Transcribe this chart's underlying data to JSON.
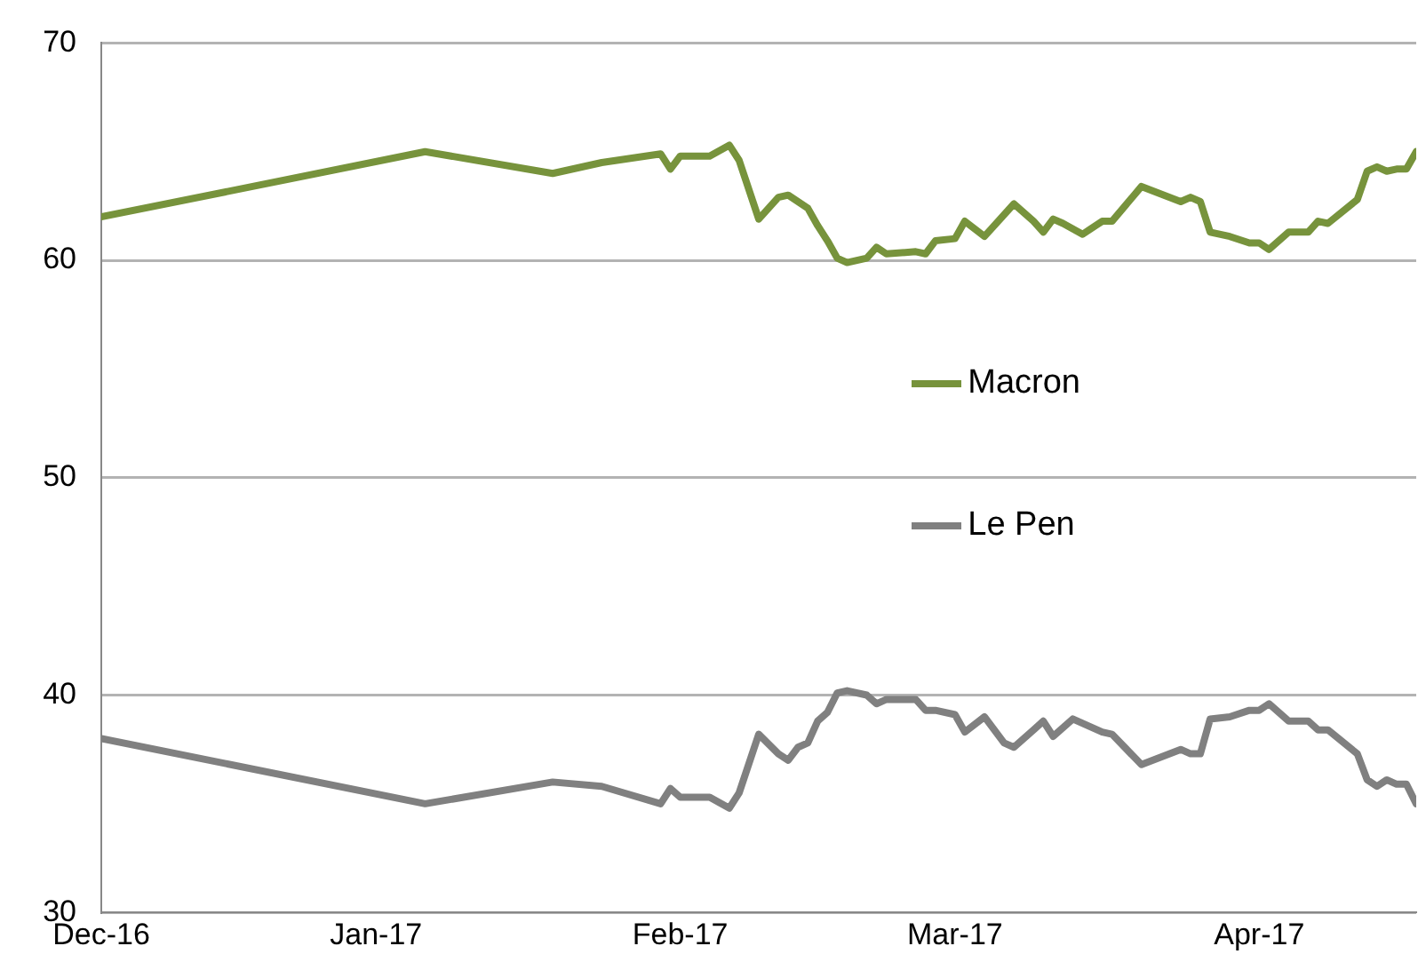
{
  "chart_data": {
    "type": "line",
    "legend": "right",
    "grid": "y",
    "marker": "none",
    "line_style": "solid",
    "xlim": [
      "2016-12-04",
      "2017-04-17"
    ],
    "xticks": [
      {
        "value": "2016-12-04",
        "label": "Dec-16"
      },
      {
        "value": "2017-01-01",
        "label": "Jan-17"
      },
      {
        "value": "2017-02-01",
        "label": "Feb-17"
      },
      {
        "value": "2017-03-01",
        "label": "Mar-17"
      },
      {
        "value": "2017-04-01",
        "label": "Apr-17"
      }
    ],
    "ylim": [
      30,
      70
    ],
    "yticks": [
      30,
      40,
      50,
      60,
      70
    ],
    "series": [
      {
        "name": "Macron",
        "color": "#77933c",
        "x": [
          "2016-12-04",
          "2017-01-06",
          "2017-01-19",
          "2017-01-24",
          "2017-01-30",
          "2017-01-31",
          "2017-02-01",
          "2017-02-04",
          "2017-02-06",
          "2017-02-07",
          "2017-02-09",
          "2017-02-11",
          "2017-02-12",
          "2017-02-14",
          "2017-02-15",
          "2017-02-16",
          "2017-02-17",
          "2017-02-18",
          "2017-02-20",
          "2017-02-21",
          "2017-02-22",
          "2017-02-25",
          "2017-02-26",
          "2017-02-27",
          "2017-03-01",
          "2017-03-02",
          "2017-03-04",
          "2017-03-07",
          "2017-03-09",
          "2017-03-10",
          "2017-03-11",
          "2017-03-12",
          "2017-03-14",
          "2017-03-16",
          "2017-03-17",
          "2017-03-20",
          "2017-03-24",
          "2017-03-25",
          "2017-03-26",
          "2017-03-27",
          "2017-03-29",
          "2017-03-31",
          "2017-04-01",
          "2017-04-02",
          "2017-04-04",
          "2017-04-06",
          "2017-04-07",
          "2017-04-08",
          "2017-04-11",
          "2017-04-12",
          "2017-04-13",
          "2017-04-14",
          "2017-04-15",
          "2017-04-16",
          "2017-04-17"
        ],
        "values": [
          62,
          65,
          64,
          64.5,
          64.9,
          64.2,
          64.8,
          64.8,
          65.3,
          64.6,
          61.9,
          62.9,
          63,
          62.4,
          61.6,
          60.9,
          60.1,
          59.9,
          60.1,
          60.6,
          60.3,
          60.4,
          60.3,
          60.9,
          61,
          61.8,
          61.1,
          62.6,
          61.8,
          61.3,
          61.9,
          61.7,
          61.2,
          61.8,
          61.8,
          63.4,
          62.7,
          62.9,
          62.7,
          61.3,
          61.1,
          60.8,
          60.8,
          60.5,
          61.3,
          61.3,
          61.8,
          61.7,
          62.8,
          64.1,
          64.3,
          64.1,
          64.2,
          64.2,
          65
        ]
      },
      {
        "name": "Le Pen",
        "color": "#808080",
        "x": [
          "2016-12-04",
          "2017-01-06",
          "2017-01-19",
          "2017-01-24",
          "2017-01-30",
          "2017-01-31",
          "2017-02-01",
          "2017-02-04",
          "2017-02-06",
          "2017-02-07",
          "2017-02-09",
          "2017-02-11",
          "2017-02-12",
          "2017-02-13",
          "2017-02-14",
          "2017-02-15",
          "2017-02-16",
          "2017-02-17",
          "2017-02-18",
          "2017-02-20",
          "2017-02-21",
          "2017-02-22",
          "2017-02-23",
          "2017-02-25",
          "2017-02-26",
          "2017-02-27",
          "2017-03-01",
          "2017-03-02",
          "2017-03-04",
          "2017-03-06",
          "2017-03-07",
          "2017-03-09",
          "2017-03-10",
          "2017-03-11",
          "2017-03-13",
          "2017-03-16",
          "2017-03-17",
          "2017-03-20",
          "2017-03-24",
          "2017-03-25",
          "2017-03-26",
          "2017-03-27",
          "2017-03-29",
          "2017-03-31",
          "2017-04-01",
          "2017-04-02",
          "2017-04-04",
          "2017-04-06",
          "2017-04-07",
          "2017-04-08",
          "2017-04-11",
          "2017-04-12",
          "2017-04-13",
          "2017-04-14",
          "2017-04-15",
          "2017-04-16",
          "2017-04-17"
        ],
        "values": [
          38,
          35,
          36,
          35.8,
          35,
          35.7,
          35.3,
          35.3,
          34.8,
          35.5,
          38.2,
          37.3,
          37,
          37.6,
          37.8,
          38.8,
          39.2,
          40.1,
          40.2,
          40,
          39.6,
          39.8,
          39.8,
          39.8,
          39.3,
          39.3,
          39.1,
          38.3,
          39,
          37.8,
          37.6,
          38.4,
          38.8,
          38.1,
          38.9,
          38.3,
          38.2,
          36.8,
          37.5,
          37.3,
          37.3,
          38.9,
          39,
          39.3,
          39.3,
          39.6,
          38.8,
          38.8,
          38.4,
          38.4,
          37.3,
          36.1,
          35.8,
          36.1,
          35.9,
          35.9,
          35
        ]
      }
    ]
  }
}
